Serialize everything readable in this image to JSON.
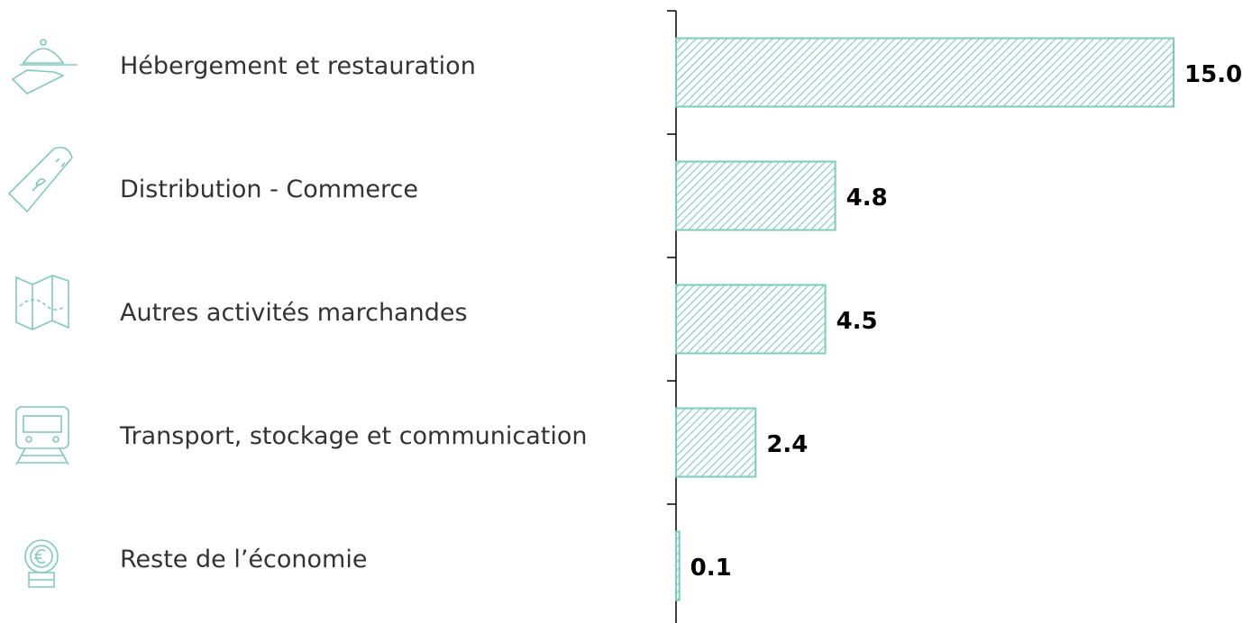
{
  "chart_data": {
    "type": "bar",
    "orientation": "horizontal",
    "categories": [
      "Hébergement et restauration",
      "Distribution - Commerce",
      "Autres activités marchandes",
      "Transport, stockage et communication",
      "Reste de l’économie"
    ],
    "values": [
      15.0,
      4.8,
      4.5,
      2.4,
      0.1
    ],
    "value_labels": [
      "15.0",
      "4.8",
      "4.5",
      "2.4",
      "0.1"
    ],
    "color": "#7ccbbd",
    "xlim": [
      0,
      15
    ]
  }
}
